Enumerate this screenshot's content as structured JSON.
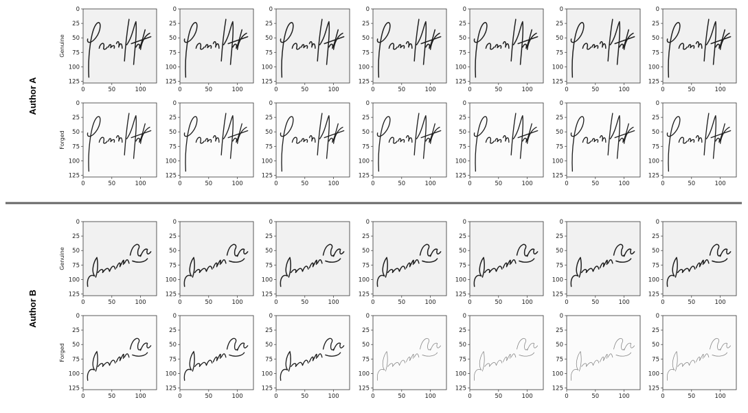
{
  "sections": [
    {
      "author_label": "Author A",
      "signature_style": "A",
      "rows": [
        {
          "label": "Genuine",
          "kind": "genuine"
        },
        {
          "label": "Forged",
          "kind": "forged"
        }
      ]
    },
    {
      "author_label": "Author B",
      "signature_style": "B",
      "rows": [
        {
          "label": "Genuine",
          "kind": "genuine"
        },
        {
          "label": "Forged",
          "kind": "forged"
        }
      ]
    }
  ],
  "columns_per_row": 7,
  "y_ticks": [
    "0",
    "25",
    "50",
    "75",
    "100",
    "125"
  ],
  "x_ticks": [
    "0",
    "50",
    "100"
  ],
  "divider_color": "#666666",
  "panel_bg": "#f1f1f1",
  "forged_b_light_panels": [
    3,
    4,
    5,
    6
  ]
}
